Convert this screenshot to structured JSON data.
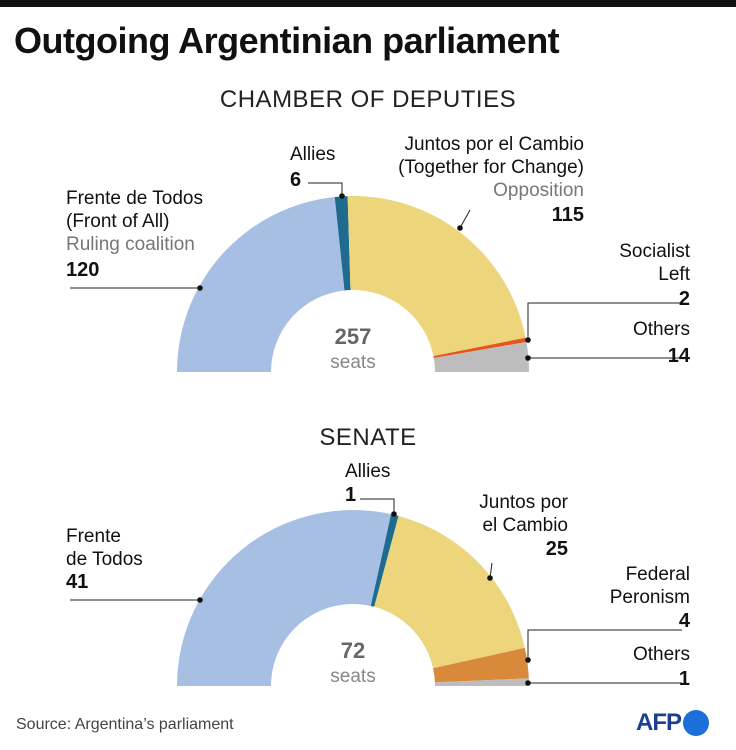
{
  "title": "Outgoing Argentinian parliament",
  "source": "Source: Argentina’s parliament",
  "logo": "AFP",
  "chart_data": [
    {
      "type": "pie",
      "title": "CHAMBER OF DEPUTIES",
      "total": 257,
      "total_unit": "seats",
      "segments": [
        {
          "key": "fdt",
          "lines": [
            "Frente de Todos",
            "(Front of All)"
          ],
          "note": "Ruling coalition",
          "value": 120,
          "color": "#a6bfe3"
        },
        {
          "key": "allies",
          "lines": [
            "Allies"
          ],
          "note": "",
          "value": 6,
          "color": "#1f6a8f"
        },
        {
          "key": "jxc",
          "lines": [
            "Juntos por el Cambio",
            "(Together for Change)"
          ],
          "note": "Opposition",
          "value": 115,
          "color": "#ecd57a"
        },
        {
          "key": "socialist",
          "lines": [
            "Socialist",
            "Left"
          ],
          "note": "",
          "value": 2,
          "color": "#e8541c"
        },
        {
          "key": "others",
          "lines": [
            "Others"
          ],
          "note": "",
          "value": 14,
          "color": "#bdbdbd"
        }
      ]
    },
    {
      "type": "pie",
      "title": "SENATE",
      "total": 72,
      "total_unit": "seats",
      "segments": [
        {
          "key": "fdt",
          "lines": [
            "Frente",
            "de Todos"
          ],
          "note": "",
          "value": 41,
          "color": "#a6bfe3"
        },
        {
          "key": "allies",
          "lines": [
            "Allies"
          ],
          "note": "",
          "value": 1,
          "color": "#1f6a8f"
        },
        {
          "key": "jxc",
          "lines": [
            "Juntos por",
            "el Cambio"
          ],
          "note": "",
          "value": 25,
          "color": "#ecd57a"
        },
        {
          "key": "federal",
          "lines": [
            "Federal",
            "Peronism"
          ],
          "note": "",
          "value": 4,
          "color": "#d9893a"
        },
        {
          "key": "others",
          "lines": [
            "Others"
          ],
          "note": "",
          "value": 1,
          "color": "#bdbdbd"
        }
      ]
    }
  ]
}
